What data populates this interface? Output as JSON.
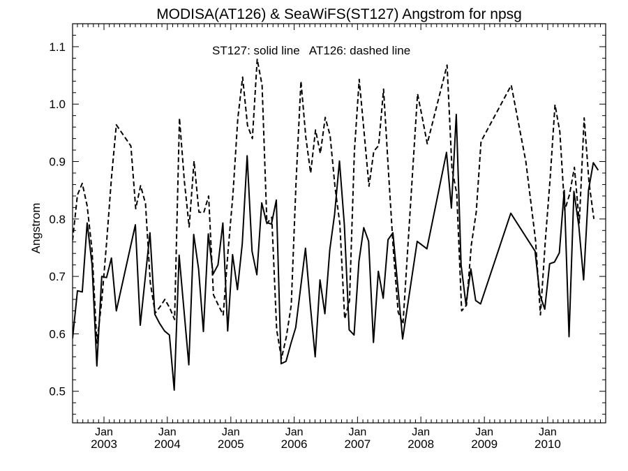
{
  "chart_data": {
    "type": "line",
    "title": "MODISA(AT126) & SeaWiFS(ST127)  Angstrom for npsg",
    "annotation": "ST127: solid line   AT126: dashed line",
    "ylabel": "Angstrom",
    "xlabel": "",
    "ylim": [
      0.445,
      1.14
    ],
    "xlim": [
      "2002-07-04",
      "2010-12-01"
    ],
    "y_ticks": [
      "0.5",
      "0.6",
      "0.7",
      "0.8",
      "0.9",
      "1.0",
      "1.1"
    ],
    "x_ticks": [
      {
        "month": "Jan",
        "year": "2003",
        "date": "2003-01-01"
      },
      {
        "month": "Jan",
        "year": "2004",
        "date": "2004-01-01"
      },
      {
        "month": "Jan",
        "year": "2005",
        "date": "2005-01-01"
      },
      {
        "month": "Jan",
        "year": "2006",
        "date": "2006-01-01"
      },
      {
        "month": "Jan",
        "year": "2007",
        "date": "2007-01-01"
      },
      {
        "month": "Jan",
        "year": "2008",
        "date": "2008-01-01"
      },
      {
        "month": "Jan",
        "year": "2009",
        "date": "2009-01-01"
      },
      {
        "month": "Jan",
        "year": "2010",
        "date": "2010-01-01"
      }
    ],
    "grid": false,
    "series": [
      {
        "style": "solid",
        "color": "#000000",
        "points": [
          [
            "2002-07-04",
            0.592
          ],
          [
            "2002-08-01",
            0.675
          ],
          [
            "2002-08-29",
            0.673
          ],
          [
            "2002-09-26",
            0.793
          ],
          [
            "2002-10-24",
            0.721
          ],
          [
            "2002-11-21",
            0.544
          ],
          [
            "2002-12-19",
            0.7
          ],
          [
            "2003-01-16",
            0.698
          ],
          [
            "2003-02-13",
            0.732
          ],
          [
            "2003-03-13",
            0.64
          ],
          [
            "2003-07-01",
            0.79
          ],
          [
            "2003-07-29",
            0.615
          ],
          [
            "2003-09-23",
            0.776
          ],
          [
            "2003-10-21",
            0.634
          ],
          [
            "2003-11-18",
            0.618
          ],
          [
            "2003-12-16",
            0.605
          ],
          [
            "2004-01-13",
            0.598
          ],
          [
            "2004-02-10",
            0.502
          ],
          [
            "2004-03-09",
            0.737
          ],
          [
            "2004-05-04",
            0.546
          ],
          [
            "2004-06-01",
            0.773
          ],
          [
            "2004-06-29",
            0.713
          ],
          [
            "2004-07-27",
            0.604
          ],
          [
            "2004-08-24",
            0.774
          ],
          [
            "2004-09-21",
            0.704
          ],
          [
            "2004-10-19",
            0.72
          ],
          [
            "2004-11-16",
            0.793
          ],
          [
            "2004-12-14",
            0.605
          ],
          [
            "2005-01-11",
            0.738
          ],
          [
            "2005-02-08",
            0.677
          ],
          [
            "2005-03-08",
            0.757
          ],
          [
            "2005-04-05",
            0.91
          ],
          [
            "2005-05-03",
            0.744
          ],
          [
            "2005-05-31",
            0.703
          ],
          [
            "2005-06-28",
            0.828
          ],
          [
            "2005-07-26",
            0.794
          ],
          [
            "2005-08-23",
            0.791
          ],
          [
            "2005-09-20",
            0.833
          ],
          [
            "2005-10-18",
            0.548
          ],
          [
            "2005-11-15",
            0.552
          ],
          [
            "2005-12-13",
            0.583
          ],
          [
            "2006-01-10",
            0.611
          ],
          [
            "2006-03-07",
            0.749
          ],
          [
            "2006-04-04",
            0.65
          ],
          [
            "2006-05-02",
            0.56
          ],
          [
            "2006-05-30",
            0.694
          ],
          [
            "2006-06-27",
            0.635
          ],
          [
            "2006-07-25",
            0.746
          ],
          [
            "2006-08-22",
            0.808
          ],
          [
            "2006-09-19",
            0.901
          ],
          [
            "2006-10-17",
            0.79
          ],
          [
            "2006-11-14",
            0.607
          ],
          [
            "2006-12-12",
            0.598
          ],
          [
            "2007-01-09",
            0.726
          ],
          [
            "2007-02-06",
            0.785
          ],
          [
            "2007-03-06",
            0.761
          ],
          [
            "2007-04-03",
            0.585
          ],
          [
            "2007-05-01",
            0.709
          ],
          [
            "2007-05-29",
            0.662
          ],
          [
            "2007-06-26",
            0.764
          ],
          [
            "2007-07-24",
            0.776
          ],
          [
            "2007-09-18",
            0.591
          ],
          [
            "2007-12-11",
            0.761
          ],
          [
            "2008-02-05",
            0.748
          ],
          [
            "2008-05-28",
            0.916
          ],
          [
            "2008-06-25",
            0.819
          ],
          [
            "2008-07-23",
            0.982
          ],
          [
            "2008-08-20",
            0.72
          ],
          [
            "2008-09-17",
            0.651
          ],
          [
            "2008-10-15",
            0.713
          ],
          [
            "2008-11-12",
            0.658
          ],
          [
            "2008-12-10",
            0.652
          ],
          [
            "2009-06-02",
            0.81
          ],
          [
            "2009-10-20",
            0.744
          ],
          [
            "2009-11-17",
            0.668
          ],
          [
            "2009-12-15",
            0.643
          ],
          [
            "2010-01-12",
            0.722
          ],
          [
            "2010-02-09",
            0.725
          ],
          [
            "2010-03-09",
            0.741
          ],
          [
            "2010-04-06",
            0.85
          ],
          [
            "2010-05-04",
            0.595
          ],
          [
            "2010-06-01",
            0.848
          ],
          [
            "2010-06-29",
            0.788
          ],
          [
            "2010-07-27",
            0.694
          ],
          [
            "2010-08-24",
            0.85
          ],
          [
            "2010-09-21",
            0.898
          ],
          [
            "2010-10-19",
            0.885
          ]
        ]
      },
      {
        "style": "dashed",
        "color": "#000000",
        "points": [
          [
            "2002-07-04",
            0.763
          ],
          [
            "2002-08-01",
            0.842
          ],
          [
            "2002-08-29",
            0.862
          ],
          [
            "2002-09-26",
            0.823
          ],
          [
            "2002-10-24",
            0.746
          ],
          [
            "2002-11-21",
            0.584
          ],
          [
            "2002-12-19",
            0.657
          ],
          [
            "2003-01-16",
            0.758
          ],
          [
            "2003-02-13",
            0.871
          ],
          [
            "2003-03-13",
            0.964
          ],
          [
            "2003-06-05",
            0.927
          ],
          [
            "2003-07-03",
            0.818
          ],
          [
            "2003-07-31",
            0.858
          ],
          [
            "2003-08-28",
            0.827
          ],
          [
            "2003-09-25",
            0.689
          ],
          [
            "2003-10-23",
            0.636
          ],
          [
            "2003-11-20",
            0.647
          ],
          [
            "2003-12-18",
            0.66
          ],
          [
            "2004-01-15",
            0.645
          ],
          [
            "2004-02-12",
            0.625
          ],
          [
            "2004-03-11",
            0.976
          ],
          [
            "2004-04-08",
            0.866
          ],
          [
            "2004-05-06",
            0.786
          ],
          [
            "2004-06-03",
            0.901
          ],
          [
            "2004-07-01",
            0.812
          ],
          [
            "2004-07-29",
            0.811
          ],
          [
            "2004-08-26",
            0.84
          ],
          [
            "2004-09-23",
            0.668
          ],
          [
            "2004-10-21",
            0.65
          ],
          [
            "2004-11-18",
            0.633
          ],
          [
            "2004-12-16",
            0.744
          ],
          [
            "2005-01-13",
            0.842
          ],
          [
            "2005-02-10",
            0.975
          ],
          [
            "2005-03-10",
            1.047
          ],
          [
            "2005-04-07",
            0.963
          ],
          [
            "2005-05-05",
            0.94
          ],
          [
            "2005-06-02",
            1.078
          ],
          [
            "2005-06-30",
            1.033
          ],
          [
            "2005-07-28",
            0.792
          ],
          [
            "2005-08-25",
            0.803
          ],
          [
            "2005-09-22",
            0.607
          ],
          [
            "2005-10-20",
            0.557
          ],
          [
            "2005-11-17",
            0.595
          ],
          [
            "2005-12-15",
            0.65
          ],
          [
            "2006-01-12",
            0.865
          ],
          [
            "2006-02-09",
            1.04
          ],
          [
            "2006-03-09",
            0.942
          ],
          [
            "2006-04-06",
            0.88
          ],
          [
            "2006-05-04",
            0.955
          ],
          [
            "2006-06-01",
            0.914
          ],
          [
            "2006-06-29",
            0.977
          ],
          [
            "2006-07-27",
            0.945
          ],
          [
            "2006-08-24",
            0.857
          ],
          [
            "2006-09-21",
            0.792
          ],
          [
            "2006-10-19",
            0.626
          ],
          [
            "2006-11-16",
            0.658
          ],
          [
            "2006-12-14",
            0.918
          ],
          [
            "2007-01-11",
            1.043
          ],
          [
            "2007-02-08",
            0.951
          ],
          [
            "2007-03-08",
            0.857
          ],
          [
            "2007-04-05",
            0.918
          ],
          [
            "2007-05-03",
            0.928
          ],
          [
            "2007-05-31",
            1.026
          ],
          [
            "2007-06-28",
            0.885
          ],
          [
            "2007-07-26",
            0.748
          ],
          [
            "2007-08-23",
            0.638
          ],
          [
            "2007-09-20",
            0.617
          ],
          [
            "2007-12-13",
            1.018
          ],
          [
            "2008-01-10",
            0.975
          ],
          [
            "2008-02-07",
            0.931
          ],
          [
            "2008-05-31",
            1.068
          ],
          [
            "2008-06-28",
            0.888
          ],
          [
            "2008-07-26",
            0.844
          ],
          [
            "2008-08-23",
            0.64
          ],
          [
            "2008-09-20",
            0.65
          ],
          [
            "2008-10-18",
            0.755
          ],
          [
            "2008-11-15",
            0.812
          ],
          [
            "2008-12-13",
            0.935
          ],
          [
            "2009-06-05",
            1.033
          ],
          [
            "2009-08-28",
            0.9
          ],
          [
            "2009-10-23",
            0.763
          ],
          [
            "2009-11-20",
            0.633
          ],
          [
            "2009-12-18",
            0.762
          ],
          [
            "2010-01-15",
            0.87
          ],
          [
            "2010-02-12",
            0.999
          ],
          [
            "2010-03-12",
            0.952
          ],
          [
            "2010-04-09",
            0.815
          ],
          [
            "2010-05-07",
            0.843
          ],
          [
            "2010-06-04",
            0.89
          ],
          [
            "2010-07-02",
            0.793
          ],
          [
            "2010-07-30",
            0.976
          ],
          [
            "2010-08-27",
            0.864
          ],
          [
            "2010-09-24",
            0.8
          ]
        ]
      }
    ]
  }
}
